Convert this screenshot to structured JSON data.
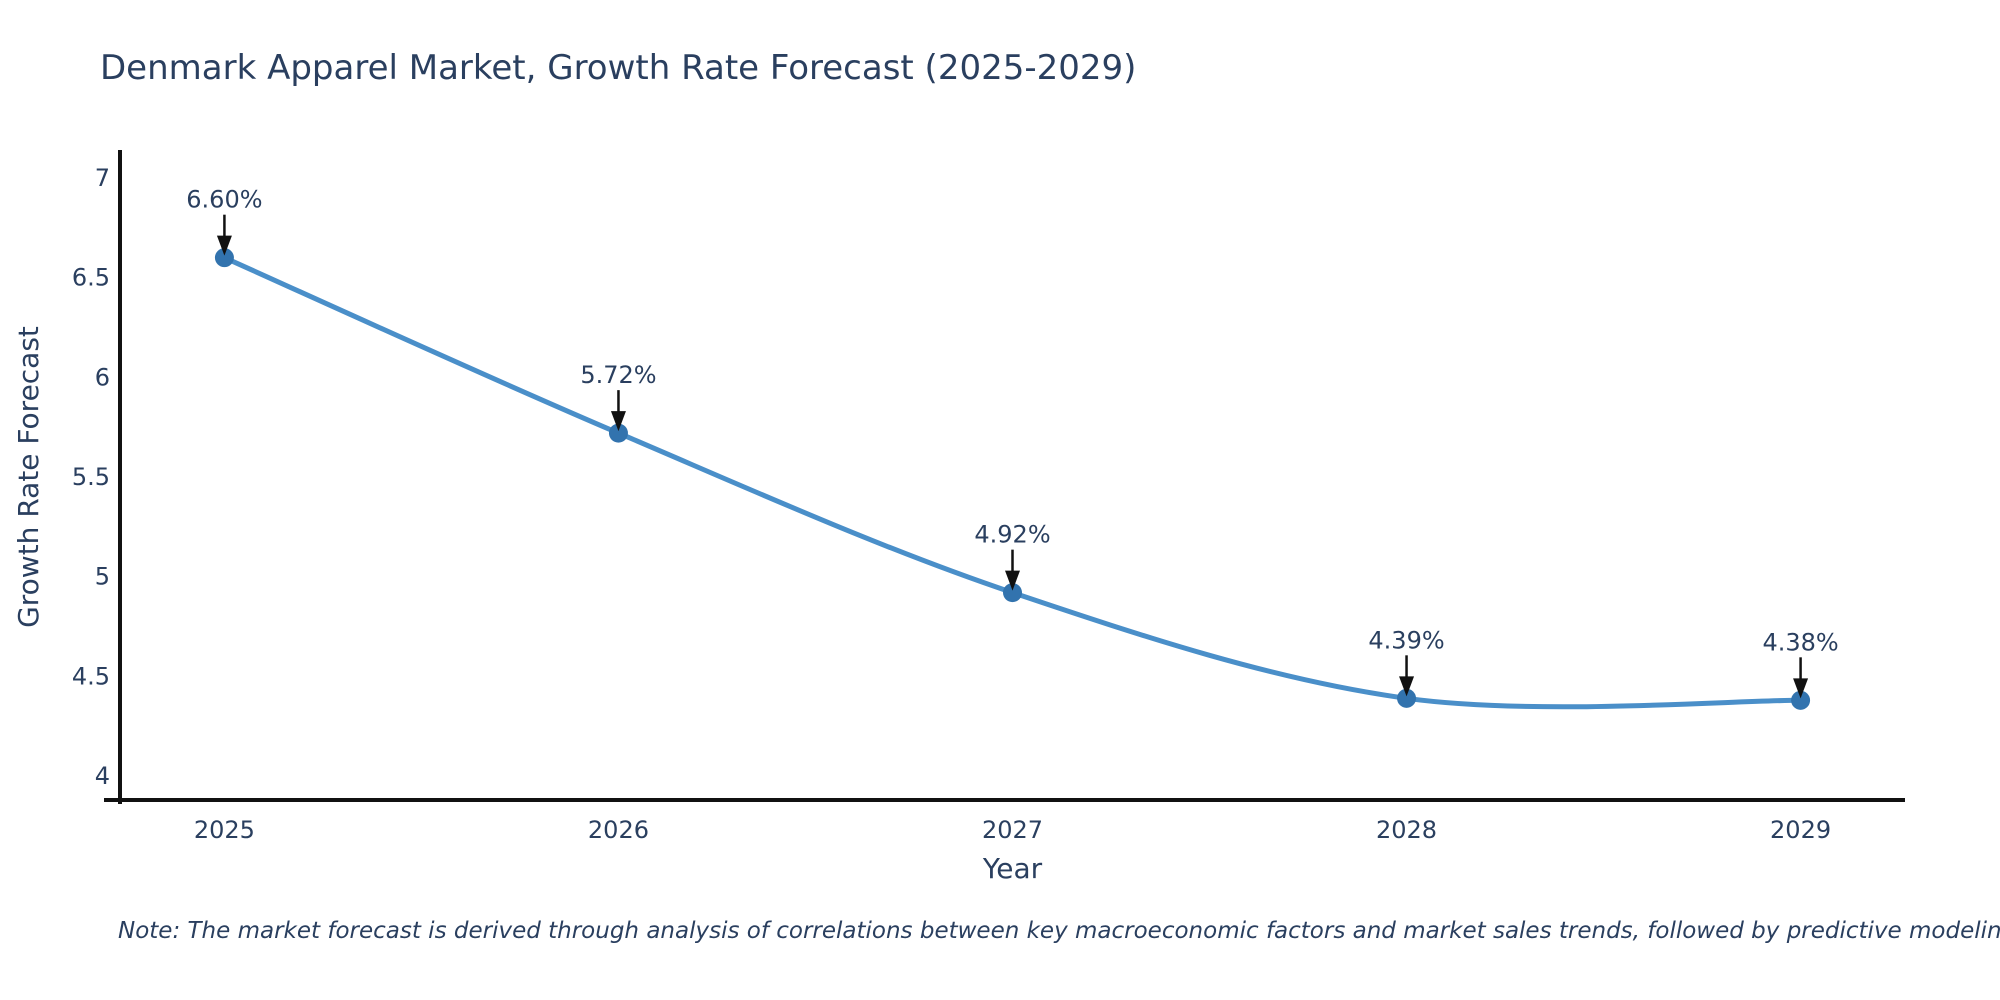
{
  "note": {
    "text": "Note: The market forecast is derived through analysis of correlations between key macroeconomic factors and market sales trends, followed by predictive modeling to project future sales"
  },
  "chart_data": {
    "type": "line",
    "title": "Denmark Apparel Market, Growth Rate Forecast (2025-2029)",
    "xlabel": "Year",
    "ylabel": "Growth Rate Forecast",
    "categories": [
      2025,
      2026,
      2027,
      2028,
      2029
    ],
    "values": [
      6.6,
      5.72,
      4.92,
      4.39,
      4.38
    ],
    "point_labels": [
      "6.60%",
      "5.72%",
      "4.92%",
      "4.39%",
      "4.38%"
    ],
    "yticks": [
      4,
      4.5,
      5,
      5.5,
      6,
      6.5,
      7
    ],
    "ytick_labels": [
      "4",
      "4.5",
      "5",
      "5.5",
      "6",
      "6.5",
      "7"
    ],
    "ylim": [
      3.87,
      7.13
    ],
    "xlim": [
      2024.735,
      2029.265
    ],
    "line_shape": "spline",
    "grid": false,
    "legend_position": "none",
    "colors": {
      "line": "#4a8fc9",
      "marker": "#3273ae",
      "arrow": "#111111",
      "axis_line": "#111111",
      "text": "#2a3f5f"
    }
  }
}
